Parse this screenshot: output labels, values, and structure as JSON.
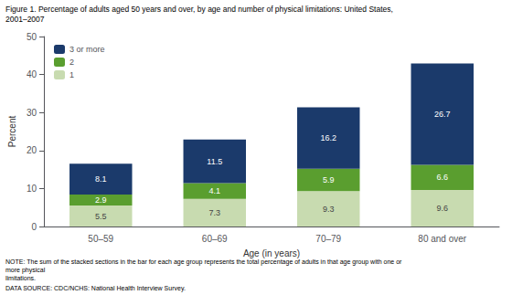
{
  "chart_data": {
    "type": "bar",
    "title": "Figure 1. Percentage of adults aged 50 years and over, by age and number of physical limitations: United States,\n2001–2007",
    "categories": [
      "50–59",
      "60–69",
      "70–79",
      "80 and over"
    ],
    "series": [
      {
        "name": "1",
        "color": "#c8dbb0",
        "values": [
          5.5,
          7.3,
          9.3,
          9.6
        ]
      },
      {
        "name": "2",
        "color": "#5a9e2f",
        "values": [
          2.9,
          4.1,
          5.9,
          6.6
        ]
      },
      {
        "name": "3 or more",
        "color": "#1b3a6b",
        "values": [
          8.1,
          11.5,
          16.2,
          26.7
        ]
      }
    ],
    "stacked": true,
    "data_labels": true,
    "xlabel": "Age (in years)",
    "ylabel": "Percent",
    "ylim": [
      0,
      50
    ],
    "yticks": [
      0,
      10,
      20,
      30,
      40,
      50
    ],
    "grid": false,
    "legend": "upper left",
    "annotations": [
      "NOTE: The sum of the stacked sections in the bar for each age group represents the total percentage of adults in that age group with one or more physical\nlimitations.",
      "DATA SOURCE: CDC/NCHS: National Health Interview Survey."
    ]
  }
}
